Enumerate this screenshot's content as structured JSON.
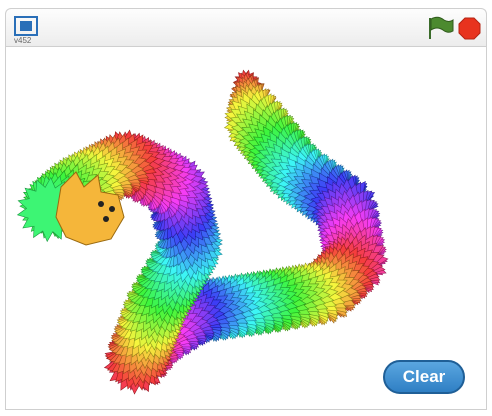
{
  "player": {
    "version": "v452"
  },
  "stage": {
    "button": "Clear"
  }
}
